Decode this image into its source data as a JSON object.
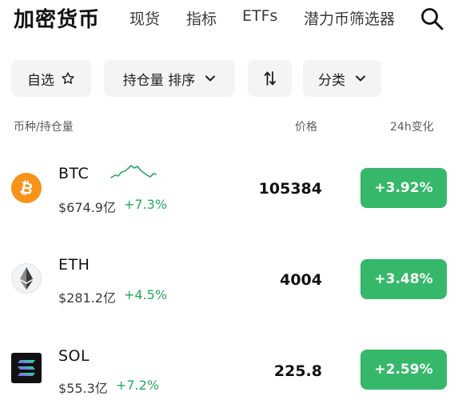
{
  "header": {
    "brand": "加密货币",
    "tabs": [
      {
        "label": "现货"
      },
      {
        "label": "指标"
      },
      {
        "label": "ETFs"
      },
      {
        "label": "潜力币筛选器"
      }
    ]
  },
  "filters": {
    "watchlist_label": "自选",
    "sort_label": "持仓量 排序",
    "category_label": "分类"
  },
  "columns": {
    "asset": "币种/持仓量",
    "price": "价格",
    "change": "24h变化"
  },
  "rows": [
    {
      "symbol": "BTC",
      "holding": "$674.9亿",
      "holding_change": "+7.3%",
      "price": "105384",
      "change": "+3.92%",
      "icon": "bitcoin-icon"
    },
    {
      "symbol": "ETH",
      "holding": "$281.2亿",
      "holding_change": "+4.5%",
      "price": "4004",
      "change": "+3.48%",
      "icon": "ethereum-icon"
    },
    {
      "symbol": "SOL",
      "holding": "$55.3亿",
      "holding_change": "+7.2%",
      "price": "225.8",
      "change": "+2.59%",
      "icon": "solana-icon"
    }
  ],
  "colors": {
    "positive": "#27a760",
    "positive_button": "#35b86a",
    "chip_bg": "#f3f4f6",
    "bitcoin": "#f7931a"
  }
}
